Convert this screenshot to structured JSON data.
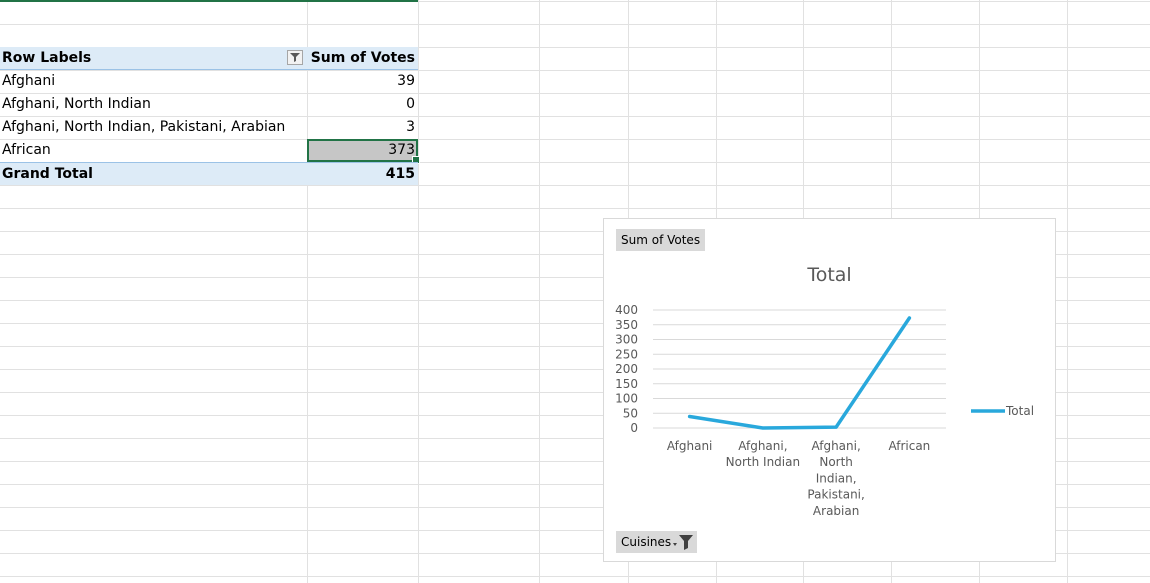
{
  "pivot": {
    "header": {
      "row_labels": "Row Labels",
      "sum_label": "Sum of Votes",
      "filter_icon": "filter-dropdown-icon"
    },
    "rows": [
      {
        "label": "Afghani",
        "value": "39"
      },
      {
        "label": "Afghani, North Indian",
        "value": "0"
      },
      {
        "label": "Afghani, North Indian, Pakistani, Arabian",
        "value": "3"
      },
      {
        "label": "African",
        "value": "373"
      }
    ],
    "grand_total": {
      "label": "Grand Total",
      "value": "415"
    }
  },
  "chart": {
    "value_field_button": "Sum of Votes",
    "axis_field_button": "Cuisines",
    "filter_icon": "filter-dropdown-icon",
    "accent_color": "#29a8dc"
  },
  "chart_data": {
    "type": "line",
    "title": "Total",
    "categories": [
      "Afghani",
      "Afghani, North Indian",
      "Afghani, North Indian, Pakistani, Arabian",
      "African"
    ],
    "category_label_lines": [
      [
        "Afghani"
      ],
      [
        "Afghani,",
        "North Indian"
      ],
      [
        "Afghani,",
        "North",
        "Indian,",
        "Pakistani,",
        "Arabian"
      ],
      [
        "African"
      ]
    ],
    "series": [
      {
        "name": "Total",
        "values": [
          39,
          0,
          3,
          373
        ]
      }
    ],
    "ylim": [
      0,
      400
    ],
    "yticks": [
      0,
      50,
      100,
      150,
      200,
      250,
      300,
      350,
      400
    ],
    "grid": true,
    "legend": "right"
  }
}
